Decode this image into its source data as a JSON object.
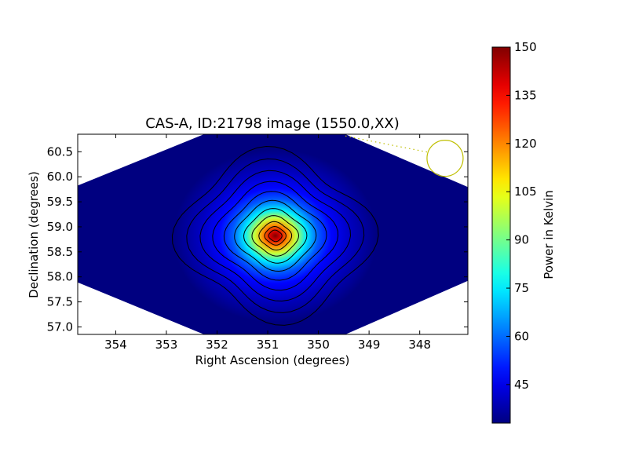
{
  "chart_data": {
    "type": "heatmap",
    "title": "CAS-A, ID:21798 image (1550.0,XX)",
    "xlabel": "Right Ascension (degrees)",
    "ylabel": "Declination (degrees)",
    "xlim": [
      354.75,
      347.05
    ],
    "ylim": [
      56.85,
      60.85
    ],
    "x_ticks": [
      "354",
      "353",
      "352",
      "351",
      "350",
      "349",
      "348"
    ],
    "x_tick_values": [
      354,
      353,
      352,
      351,
      350,
      349,
      348
    ],
    "y_ticks": [
      "57.0",
      "57.5",
      "58.0",
      "58.5",
      "59.0",
      "59.5",
      "60.0",
      "60.5"
    ],
    "y_tick_values": [
      57.0,
      57.5,
      58.0,
      58.5,
      59.0,
      59.5,
      60.0,
      60.5
    ],
    "peak": {
      "ra": 350.85,
      "dec": 58.82,
      "value": 150
    },
    "background_value": 33,
    "colormap": "jet",
    "colors": [
      "#00007f",
      "#0000ff",
      "#007fff",
      "#00ffff",
      "#7fff7f",
      "#ffff00",
      "#ff7f00",
      "#ff0000",
      "#7f0000"
    ],
    "contour_levels": [
      40,
      50,
      60,
      70,
      80,
      90,
      100,
      110,
      120,
      130,
      140
    ],
    "colorbar": {
      "label": "Power in Kelvin",
      "min": 33,
      "max": 150,
      "ticks": [
        "45",
        "60",
        "75",
        "90",
        "105",
        "120",
        "135",
        "150"
      ],
      "tick_values": [
        45,
        60,
        75,
        90,
        105,
        120,
        135,
        150
      ]
    },
    "beam_marker": {
      "ra": 347.5,
      "dec": 60.37,
      "color": "#bfbf00",
      "shape": "circle",
      "trail": "dotted"
    }
  }
}
